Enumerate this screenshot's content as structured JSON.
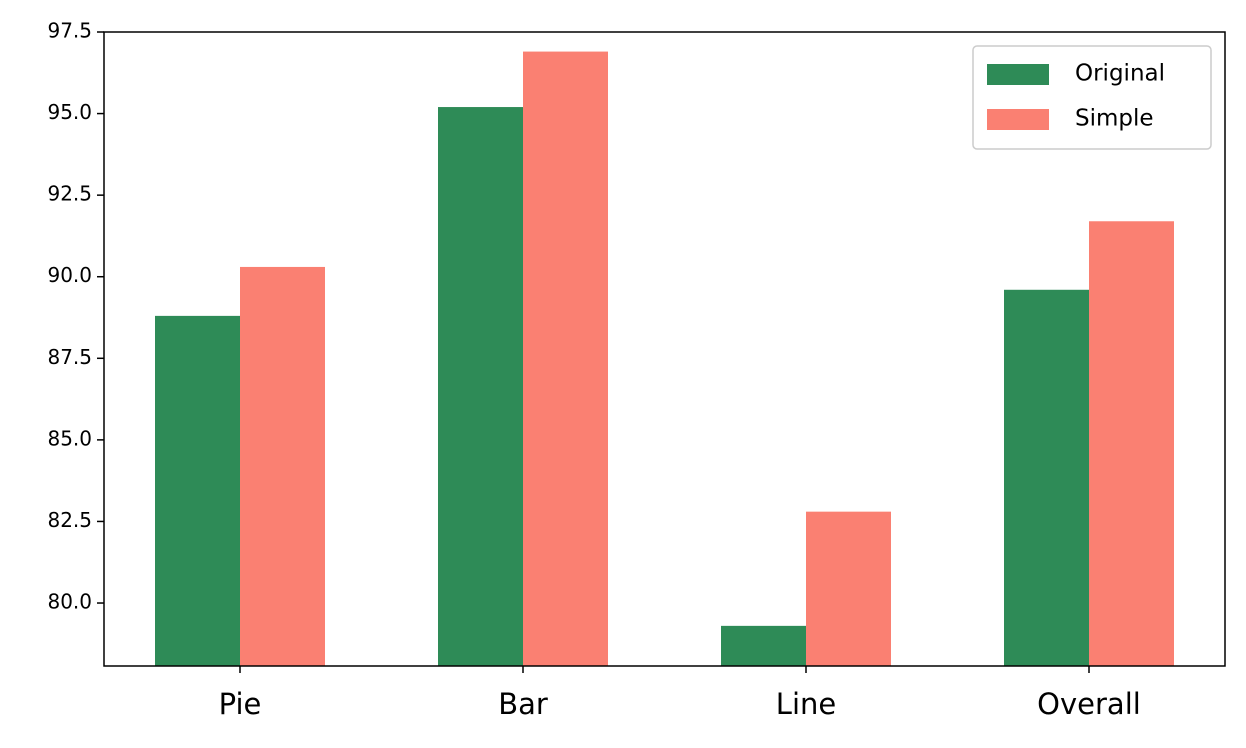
{
  "chart_data": {
    "type": "bar",
    "categories": [
      "Pie",
      "Bar",
      "Line",
      "Overall"
    ],
    "series": [
      {
        "name": "Original",
        "color": "#2e8b57",
        "values": [
          88.8,
          95.2,
          79.3,
          89.6
        ]
      },
      {
        "name": "Simple",
        "color": "#fa8072",
        "values": [
          90.3,
          96.9,
          82.8,
          91.7
        ]
      }
    ],
    "ylim": [
      78.07,
      97.5
    ],
    "yticks": [
      {
        "value": 80,
        "label": "80.0"
      },
      82.5,
      {
        "value": 85,
        "label": "85.0"
      },
      87.5,
      {
        "value": 90,
        "label": "90.0"
      },
      92.5,
      {
        "value": 95,
        "label": "95.0"
      },
      97.5
    ],
    "grid": false,
    "legend": "upper right"
  }
}
